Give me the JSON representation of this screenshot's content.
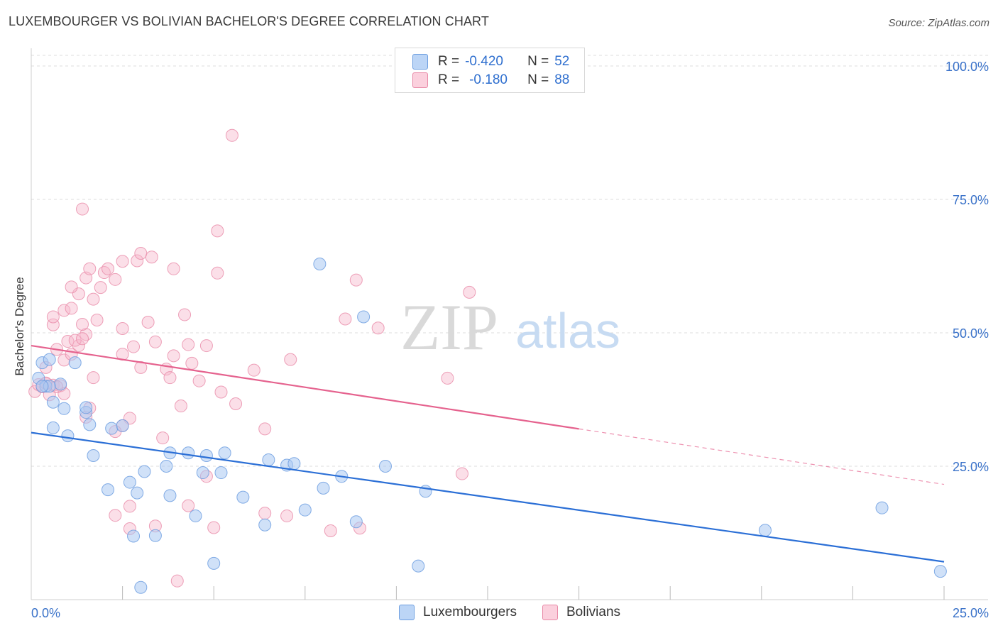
{
  "title": "LUXEMBOURGER VS BOLIVIAN BACHELOR'S DEGREE CORRELATION CHART",
  "source": "Source: ZipAtlas.com",
  "watermark": {
    "zip": "ZIP",
    "atlas": "atlas"
  },
  "legend": {
    "rows": [
      {
        "r_label": "R =",
        "r_value": "-0.420",
        "n_label": "N =",
        "n_value": "52",
        "color": "#a9c8f3"
      },
      {
        "r_label": "R =",
        "r_value": "-0.180",
        "n_label": "N =",
        "n_value": "88",
        "color": "#f6b9cb"
      }
    ]
  },
  "colors": {
    "blue_fill": "#a9c8f3",
    "blue_stroke": "#6e9fe0",
    "blue_line": "#2b6fd6",
    "pink_fill": "#f6b9cb",
    "pink_stroke": "#e88aa7",
    "pink_line": "#e5628e",
    "tick_text": "#3a72c9",
    "grid": "#dcdcdc"
  },
  "chart_data": {
    "type": "scatter",
    "title": "LUXEMBOURGER VS BOLIVIAN BACHELOR'S DEGREE CORRELATION CHART",
    "xlabel": "",
    "ylabel": "Bachelor's Degree",
    "xlim": [
      0,
      25
    ],
    "ylim": [
      0,
      102
    ],
    "x_tick_labels": [
      "0.0%",
      "25.0%"
    ],
    "y_ticks": [
      25,
      50,
      75,
      100
    ],
    "y_tick_labels": [
      "25.0%",
      "50.0%",
      "75.0%",
      "100.0%"
    ],
    "grid": true,
    "legend_position": "top-center",
    "series": [
      {
        "name": "Luxembourgers",
        "color": "#a9c8f3",
        "trend": {
          "x": [
            0,
            25
          ],
          "y": [
            31.3,
            7.1
          ]
        },
        "points": [
          [
            0.3,
            44.4
          ],
          [
            0.5,
            45.0
          ],
          [
            0.2,
            41.5
          ],
          [
            0.8,
            40.4
          ],
          [
            0.6,
            37.0
          ],
          [
            1.2,
            44.4
          ],
          [
            0.6,
            32.2
          ],
          [
            1.0,
            30.7
          ],
          [
            1.6,
            32.8
          ],
          [
            1.5,
            35.1
          ],
          [
            2.2,
            32.1
          ],
          [
            2.5,
            32.6
          ],
          [
            1.7,
            27.0
          ],
          [
            2.1,
            20.6
          ],
          [
            2.7,
            22.0
          ],
          [
            3.1,
            24.0
          ],
          [
            3.8,
            27.5
          ],
          [
            3.7,
            25.0
          ],
          [
            4.3,
            27.5
          ],
          [
            4.8,
            27.0
          ],
          [
            5.3,
            27.5
          ],
          [
            4.7,
            23.8
          ],
          [
            5.2,
            23.8
          ],
          [
            2.9,
            20.0
          ],
          [
            3.8,
            19.5
          ],
          [
            4.5,
            15.7
          ],
          [
            5.8,
            19.2
          ],
          [
            6.5,
            26.2
          ],
          [
            7.0,
            25.2
          ],
          [
            7.2,
            25.5
          ],
          [
            8.0,
            20.9
          ],
          [
            8.5,
            23.1
          ],
          [
            9.7,
            25.0
          ],
          [
            10.8,
            20.3
          ],
          [
            7.5,
            16.8
          ],
          [
            6.4,
            14.0
          ],
          [
            8.9,
            14.6
          ],
          [
            2.8,
            11.9
          ],
          [
            3.4,
            12.0
          ],
          [
            5.0,
            6.8
          ],
          [
            3.0,
            2.3
          ],
          [
            10.6,
            6.3
          ],
          [
            7.9,
            62.9
          ],
          [
            9.1,
            53.0
          ],
          [
            20.1,
            13.0
          ],
          [
            23.3,
            17.2
          ],
          [
            24.9,
            5.3
          ],
          [
            0.9,
            35.8
          ],
          [
            1.5,
            36.0
          ],
          [
            0.4,
            40.0
          ],
          [
            0.5,
            40.0
          ],
          [
            0.3,
            40.0
          ]
        ]
      },
      {
        "name": "Bolivians",
        "color": "#f6b9cb",
        "trend": {
          "x": [
            0,
            15
          ],
          "y": [
            47.6,
            32.0
          ]
        },
        "trend_dashed": {
          "x": [
            15,
            25
          ],
          "y": [
            32.0,
            21.6
          ]
        },
        "points": [
          [
            0.1,
            39.0
          ],
          [
            0.2,
            40.3
          ],
          [
            0.4,
            40.5
          ],
          [
            0.6,
            40.2
          ],
          [
            0.8,
            40.1
          ],
          [
            0.3,
            39.9
          ],
          [
            0.5,
            38.4
          ],
          [
            0.9,
            38.6
          ],
          [
            0.4,
            43.5
          ],
          [
            0.7,
            46.9
          ],
          [
            0.9,
            44.9
          ],
          [
            1.1,
            46.0
          ],
          [
            1.3,
            47.6
          ],
          [
            1.0,
            48.4
          ],
          [
            1.2,
            48.6
          ],
          [
            1.5,
            49.7
          ],
          [
            1.4,
            51.6
          ],
          [
            0.6,
            51.5
          ],
          [
            0.6,
            53.0
          ],
          [
            0.9,
            54.2
          ],
          [
            1.1,
            54.6
          ],
          [
            1.3,
            57.3
          ],
          [
            1.1,
            58.6
          ],
          [
            1.5,
            60.3
          ],
          [
            1.7,
            56.3
          ],
          [
            1.9,
            58.5
          ],
          [
            2.0,
            61.3
          ],
          [
            2.1,
            62.0
          ],
          [
            1.6,
            62.0
          ],
          [
            1.4,
            73.2
          ],
          [
            2.5,
            63.4
          ],
          [
            2.9,
            63.5
          ],
          [
            3.0,
            64.9
          ],
          [
            3.3,
            64.2
          ],
          [
            3.9,
            62.0
          ],
          [
            2.3,
            60.0
          ],
          [
            1.8,
            52.4
          ],
          [
            2.5,
            50.8
          ],
          [
            3.2,
            52.0
          ],
          [
            3.4,
            48.3
          ],
          [
            2.5,
            46.0
          ],
          [
            2.8,
            47.4
          ],
          [
            3.0,
            43.5
          ],
          [
            3.7,
            43.2
          ],
          [
            3.9,
            45.7
          ],
          [
            4.2,
            53.4
          ],
          [
            4.3,
            47.8
          ],
          [
            4.4,
            44.3
          ],
          [
            5.1,
            61.2
          ],
          [
            5.1,
            69.1
          ],
          [
            5.5,
            87.0
          ],
          [
            6.1,
            43.0
          ],
          [
            6.4,
            32.0
          ],
          [
            5.2,
            38.9
          ],
          [
            5.6,
            36.7
          ],
          [
            4.8,
            47.6
          ],
          [
            4.6,
            41.0
          ],
          [
            3.8,
            41.6
          ],
          [
            4.1,
            36.3
          ],
          [
            3.6,
            30.3
          ],
          [
            2.7,
            34.0
          ],
          [
            2.5,
            32.6
          ],
          [
            2.3,
            31.5
          ],
          [
            1.7,
            41.6
          ],
          [
            1.5,
            34.2
          ],
          [
            1.6,
            35.9
          ],
          [
            7.1,
            45.0
          ],
          [
            8.6,
            52.6
          ],
          [
            9.5,
            50.9
          ],
          [
            8.9,
            59.9
          ],
          [
            11.4,
            41.5
          ],
          [
            12.0,
            57.6
          ],
          [
            11.8,
            23.6
          ],
          [
            8.2,
            12.9
          ],
          [
            9.0,
            13.4
          ],
          [
            7.0,
            15.7
          ],
          [
            6.4,
            16.2
          ],
          [
            5.0,
            13.5
          ],
          [
            4.3,
            17.6
          ],
          [
            3.4,
            13.8
          ],
          [
            2.7,
            13.3
          ],
          [
            2.3,
            15.8
          ],
          [
            2.7,
            17.5
          ],
          [
            4.0,
            3.5
          ],
          [
            4.8,
            23.1
          ],
          [
            1.4,
            48.9
          ],
          [
            0.7,
            39.9
          ],
          [
            0.4,
            40.6
          ]
        ]
      }
    ]
  }
}
